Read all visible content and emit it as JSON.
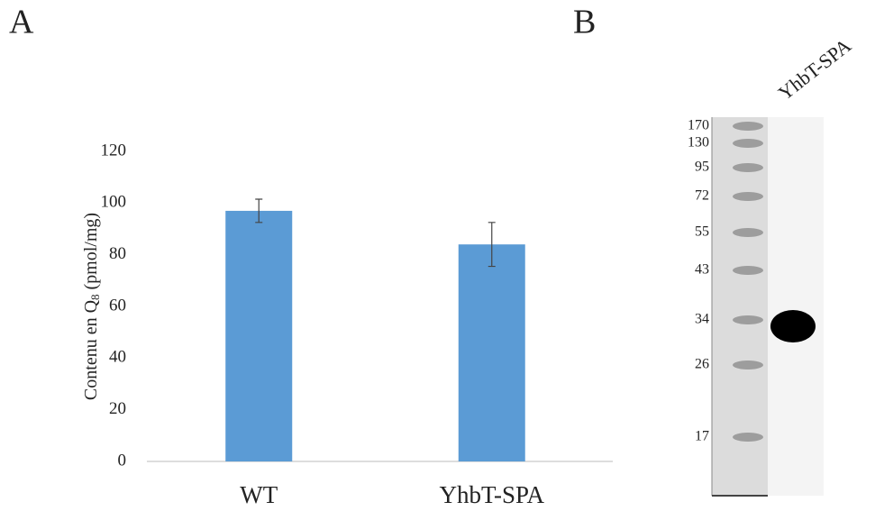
{
  "panels": [
    "A",
    "B"
  ],
  "chart_data": {
    "type": "bar",
    "y_label": {
      "prefix": "Contenu en Q",
      "subscript": "8",
      "suffix": " (pmol/mg)"
    },
    "categories": [
      "WT",
      "YhbT-SPA"
    ],
    "values": [
      97,
      84
    ],
    "errors": [
      4.5,
      8.5
    ],
    "color": "#5b9bd5",
    "ylim": [
      0,
      120
    ],
    "yticks": [
      0,
      20,
      40,
      60,
      80,
      100,
      120
    ],
    "grid": false
  },
  "blot": {
    "lane_label": "YhbT-SPA",
    "markers": [
      170,
      130,
      95,
      72,
      55,
      43,
      34,
      26,
      17
    ]
  }
}
